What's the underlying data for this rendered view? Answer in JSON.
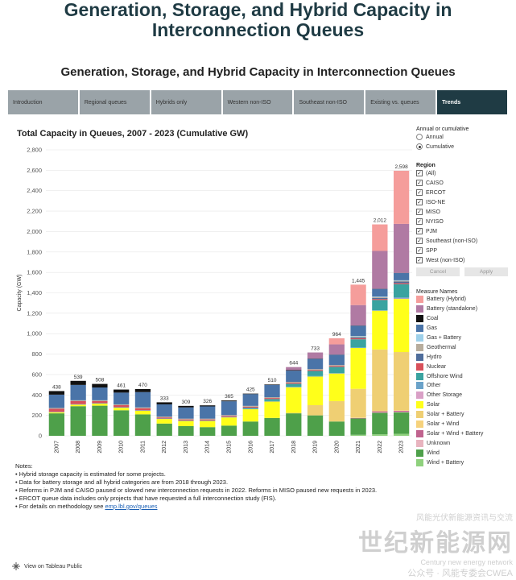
{
  "page": {
    "title": "Generation, Storage, and Hybrid Capacity in Interconnection Queues",
    "subtitle": "Generation, Storage, and Hybrid Capacity in Interconnection Queues"
  },
  "tabs": [
    {
      "label": "Introduction",
      "active": false
    },
    {
      "label": "Regional queues",
      "active": false
    },
    {
      "label": "Hybrids only",
      "active": false
    },
    {
      "label": "Western non-ISO",
      "active": false
    },
    {
      "label": "Southeast non-ISO",
      "active": false
    },
    {
      "label": "Existing vs. queues",
      "active": false
    },
    {
      "label": "Trends",
      "active": true
    }
  ],
  "controls": {
    "annual_label": "Annual or cumulative",
    "annual_options": [
      "Annual",
      "Cumulative"
    ],
    "annual_selected": "Cumulative",
    "region_label": "Region",
    "regions": [
      "(All)",
      "CAISO",
      "ERCOT",
      "ISO-NE",
      "MISO",
      "NYISO",
      "PJM",
      "Southeast (non-ISO)",
      "SPP",
      "West (non-ISO)"
    ],
    "cancel_label": "Cancel",
    "apply_label": "Apply",
    "measure_label": "Measure Names"
  },
  "colors": {
    "tab_active": "#1f3b44",
    "tab_inactive": "#9aa3a8",
    "title": "#1f3b44"
  },
  "chart_data": {
    "type": "bar",
    "title": "Total Capacity in Queues, 2007 - 2023 (Cumulative GW)",
    "xlabel": "",
    "ylabel": "Capacity (GW)",
    "ylim": [
      0,
      2800
    ],
    "ytick_step": 200,
    "grid": true,
    "legend_position": "right",
    "categories": [
      "2007",
      "2008",
      "2009",
      "2010",
      "2011",
      "2012",
      "2013",
      "2014",
      "2015",
      "2016",
      "2017",
      "2018",
      "2019",
      "2020",
      "2021",
      "2022",
      "2023"
    ],
    "totals": [
      "438",
      "539",
      "508",
      "461",
      "470",
      "333",
      "309",
      "326",
      "365",
      "425",
      "510",
      "644",
      "733",
      "964",
      "1,445",
      "2,012",
      "2,598"
    ],
    "series": [
      {
        "name": "Wind + Battery",
        "color": "#8fd17d",
        "values": [
          0,
          0,
          0,
          0,
          0,
          0,
          0,
          0,
          0,
          0,
          0,
          0,
          0,
          0,
          10,
          15,
          20
        ]
      },
      {
        "name": "Wind",
        "color": "#4ea04a",
        "values": [
          220,
          290,
          295,
          250,
          210,
          120,
          95,
          85,
          100,
          140,
          175,
          220,
          200,
          140,
          160,
          210,
          210
        ]
      },
      {
        "name": "Unknown",
        "color": "#e8b4bf",
        "values": [
          0,
          0,
          0,
          0,
          0,
          0,
          0,
          0,
          0,
          0,
          0,
          0,
          0,
          0,
          0,
          5,
          5
        ]
      },
      {
        "name": "Solar + Wind + Battery",
        "color": "#c0638e",
        "values": [
          0,
          0,
          0,
          0,
          0,
          0,
          0,
          0,
          0,
          0,
          0,
          0,
          0,
          0,
          5,
          10,
          10
        ]
      },
      {
        "name": "Solar + Wind",
        "color": "#f6d27c",
        "values": [
          0,
          0,
          0,
          0,
          0,
          0,
          0,
          0,
          0,
          0,
          0,
          0,
          0,
          0,
          5,
          5,
          5
        ]
      },
      {
        "name": "Solar + Battery",
        "color": "#efcf73",
        "values": [
          0,
          0,
          0,
          0,
          0,
          0,
          0,
          0,
          0,
          0,
          0,
          5,
          100,
          200,
          280,
          600,
          570
        ]
      },
      {
        "name": "Solar",
        "color": "#ffff1a",
        "values": [
          10,
          15,
          20,
          25,
          35,
          45,
          50,
          60,
          80,
          120,
          160,
          250,
          280,
          270,
          400,
          380,
          520
        ]
      },
      {
        "name": "Other Storage",
        "color": "#d9a0c6",
        "values": [
          0,
          0,
          0,
          0,
          0,
          0,
          0,
          0,
          0,
          0,
          0,
          0,
          0,
          0,
          0,
          0,
          5
        ]
      },
      {
        "name": "Other",
        "color": "#6aa2c9",
        "values": [
          5,
          5,
          5,
          5,
          5,
          5,
          5,
          5,
          5,
          5,
          5,
          5,
          5,
          5,
          5,
          5,
          10
        ]
      },
      {
        "name": "Offshore Wind",
        "color": "#3aa3a0",
        "values": [
          0,
          0,
          0,
          0,
          0,
          0,
          0,
          0,
          0,
          10,
          20,
          30,
          50,
          60,
          80,
          100,
          130
        ]
      },
      {
        "name": "Nuclear",
        "color": "#d8505a",
        "values": [
          30,
          30,
          20,
          20,
          20,
          10,
          10,
          10,
          10,
          10,
          10,
          10,
          10,
          10,
          10,
          10,
          10
        ]
      },
      {
        "name": "Hydro",
        "color": "#4f6d9b",
        "values": [
          0,
          0,
          0,
          0,
          0,
          0,
          0,
          0,
          0,
          0,
          0,
          0,
          0,
          0,
          10,
          10,
          15
        ]
      },
      {
        "name": "Geothermal",
        "color": "#b8ad9d",
        "values": [
          8,
          8,
          8,
          8,
          8,
          8,
          8,
          8,
          8,
          8,
          8,
          8,
          8,
          8,
          8,
          8,
          8
        ]
      },
      {
        "name": "Gas + Battery",
        "color": "#9dd0ea",
        "values": [
          0,
          0,
          0,
          0,
          0,
          0,
          0,
          0,
          0,
          0,
          0,
          0,
          0,
          0,
          5,
          5,
          5
        ]
      },
      {
        "name": "Gas",
        "color": "#4a74a8",
        "values": [
          130,
          150,
          125,
          115,
          150,
          120,
          110,
          120,
          135,
          115,
          120,
          110,
          100,
          100,
          100,
          75,
          70
        ]
      },
      {
        "name": "Coal",
        "color": "#111111",
        "values": [
          35,
          40,
          35,
          30,
          30,
          20,
          15,
          10,
          8,
          5,
          5,
          5,
          3,
          2,
          2,
          2,
          2
        ]
      },
      {
        "name": "Battery (standalone)",
        "color": "#b07aa3",
        "values": [
          0,
          0,
          0,
          0,
          0,
          0,
          0,
          0,
          0,
          0,
          0,
          30,
          60,
          100,
          200,
          370,
          480
        ]
      },
      {
        "name": "Battery (Hybrid)",
        "color": "#f59d9b",
        "values": [
          0,
          0,
          0,
          0,
          0,
          0,
          0,
          0,
          0,
          0,
          0,
          0,
          0,
          60,
          200,
          260,
          520
        ]
      }
    ]
  },
  "notes": {
    "heading": "Notes:",
    "items": [
      "Hybrid storage capacity is estimated for some projects.",
      "Data for battery storage and all hybrid categories are from 2018 through 2023.",
      "Reforms in PJM and CAISO paused or slowed new interconnection requests in 2022. Reforms in MISO paused new requests in 2023.",
      "ERCOT queue data includes only projects that have requested a full interconnection study (FIS)."
    ],
    "methodology_prefix": "For details on methodology see ",
    "methodology_link": "emp.lbl.gov/queues"
  },
  "footer": {
    "label": "View on Tableau Public"
  },
  "watermark": {
    "top": "风能光伏新能源资讯与交流",
    "main": "世纪新能源网",
    "sub": "Century new energy network",
    "account": "公众号 · 风能专委会CWEA"
  }
}
